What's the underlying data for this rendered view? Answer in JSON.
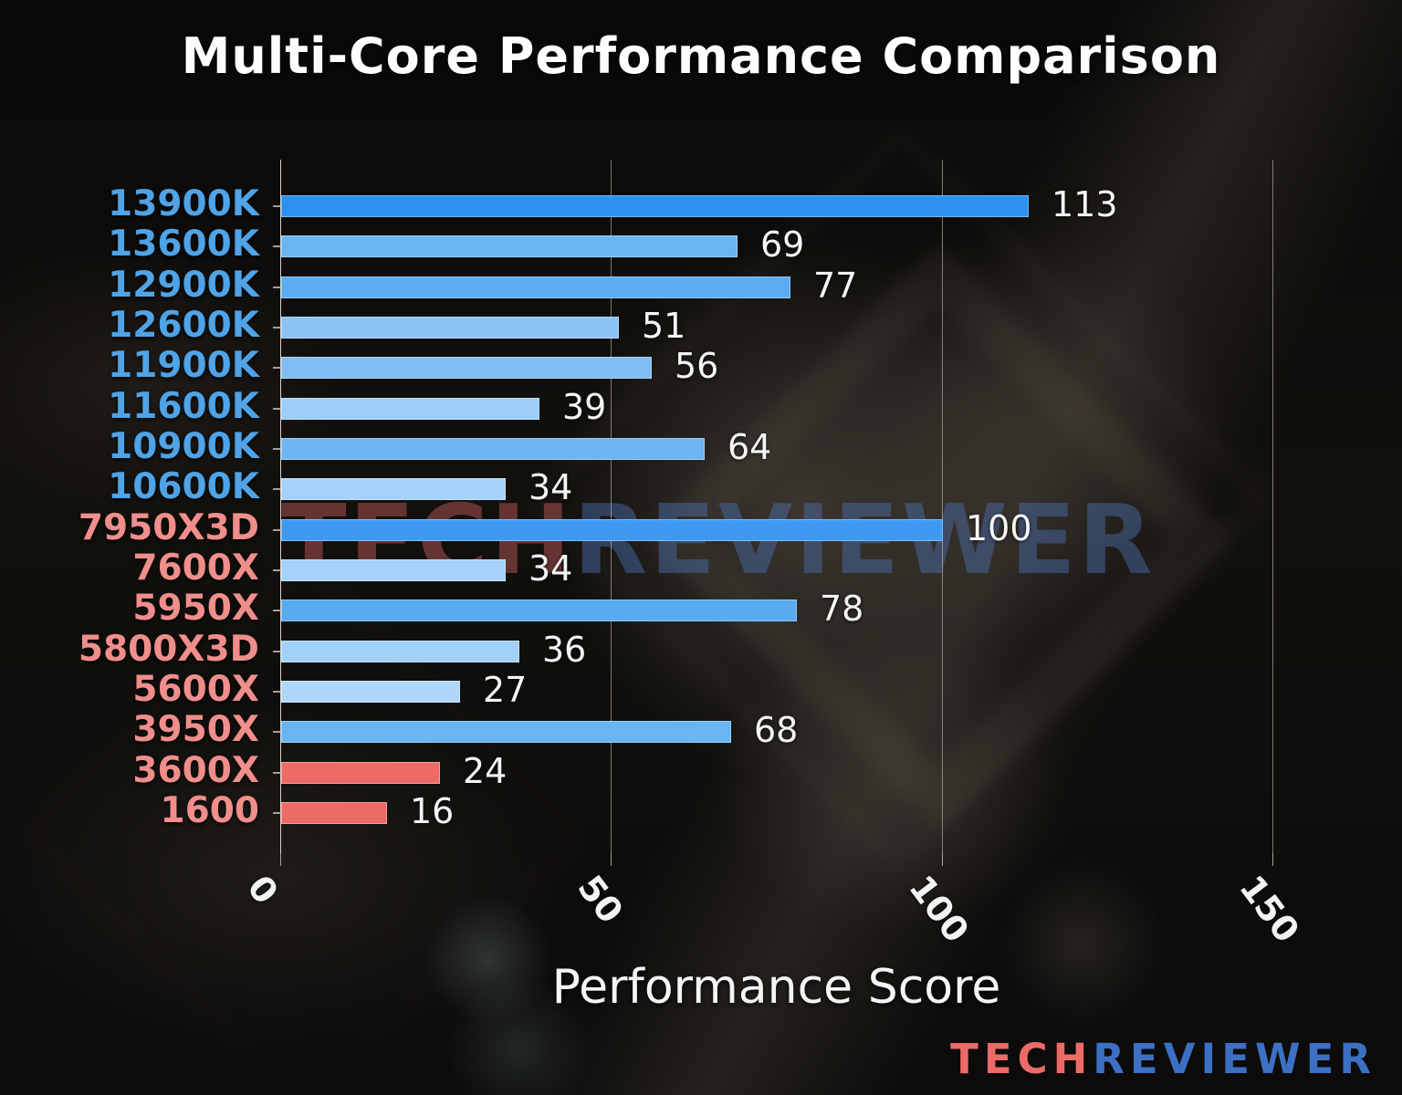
{
  "page": {
    "watermark": {
      "tech": "TECH",
      "reviewer": "REVIEWER",
      "tech_color": "rgba(170,82,82,0.55)",
      "reviewer_color": "rgba(78,112,180,0.45)"
    },
    "logo": {
      "tech": "TECH",
      "reviewer": "REVIEWER",
      "tech_color": "#ed6b67",
      "reviewer_color": "#3c70c4"
    }
  },
  "chart_data": {
    "type": "bar",
    "orientation": "horizontal",
    "title": "Multi-Core Performance Comparison",
    "xlabel": "Performance Score",
    "xlim": [
      0,
      150
    ],
    "xticks": [
      0,
      50,
      100,
      150
    ],
    "grid": true,
    "legend": false,
    "value_labels": true,
    "value_label_color": "#f5f5f5",
    "axis_color": "#d6d0c8",
    "categories": [
      "13900K",
      "13600K",
      "12900K",
      "12600K",
      "11900K",
      "11600K",
      "10900K",
      "10600K",
      "7950X3D",
      "7600X",
      "5950X",
      "5800X3D",
      "5600X",
      "3950X",
      "3600X",
      "1600"
    ],
    "values": [
      113,
      69,
      77,
      51,
      56,
      39,
      64,
      34,
      100,
      34,
      78,
      36,
      27,
      68,
      24,
      16
    ],
    "bar_colors": [
      "#2b90ee",
      "#68b5f2",
      "#5bacf0",
      "#8cc4f6",
      "#7fbdf4",
      "#9dcdf8",
      "#6db6f2",
      "#a5d2f9",
      "#3d9af0",
      "#a5d2f9",
      "#59abf0",
      "#a1d0f8",
      "#aed7fa",
      "#69b5f2",
      "#ee6a67",
      "#ee6a67"
    ],
    "category_label_colors": [
      "#4fa3e6",
      "#4fa3e6",
      "#4fa3e6",
      "#4fa3e6",
      "#4fa3e6",
      "#4fa3e6",
      "#4fa3e6",
      "#4fa3e6",
      "#f08e8b",
      "#f08e8b",
      "#f08e8b",
      "#f08e8b",
      "#f08e8b",
      "#f08e8b",
      "#f08e8b",
      "#f08e8b"
    ]
  }
}
